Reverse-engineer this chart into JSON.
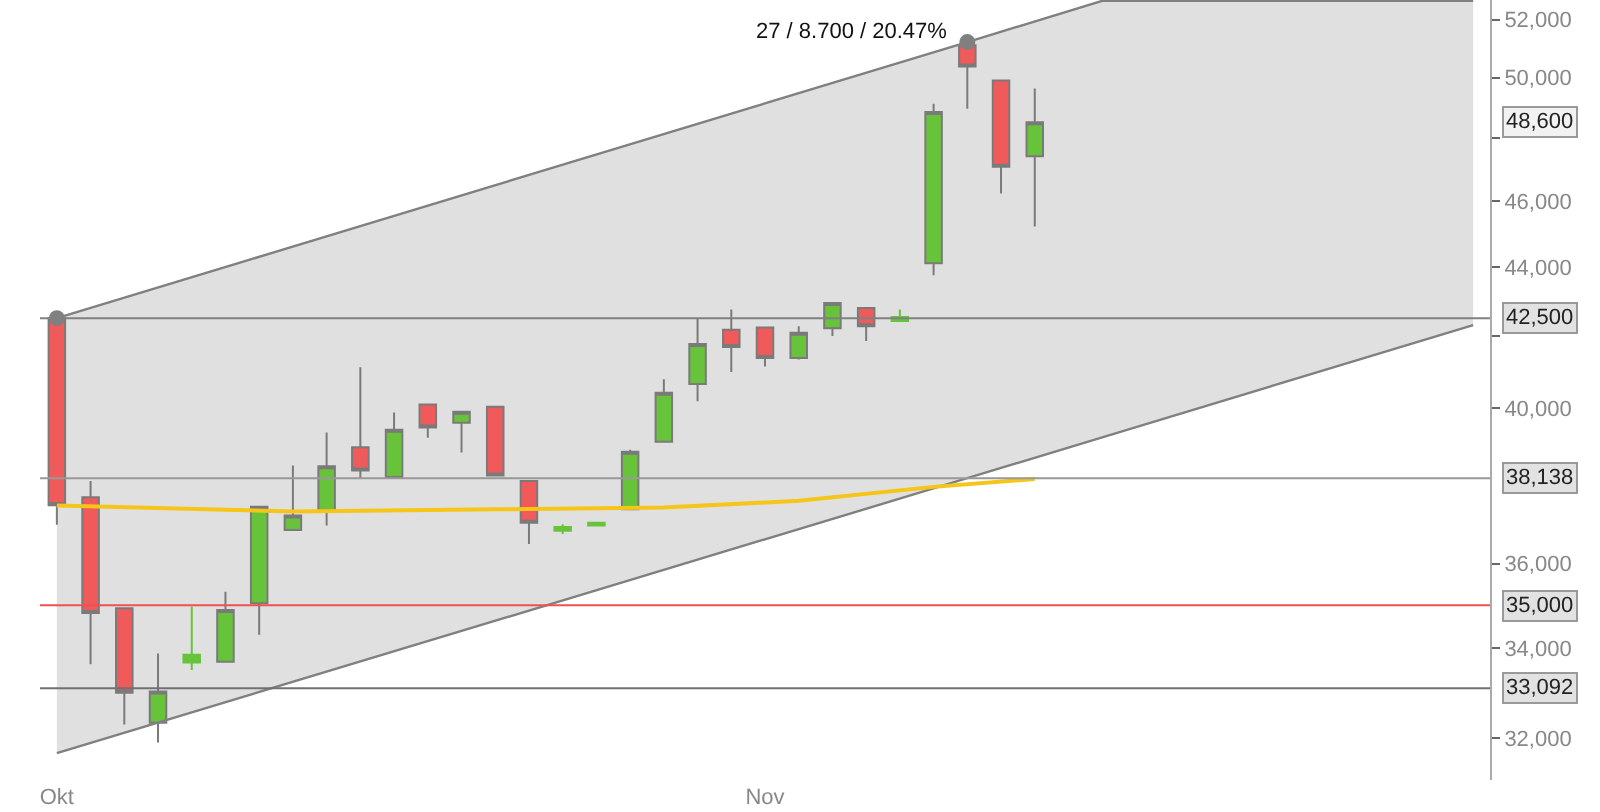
{
  "chart_data": {
    "type": "candlestick",
    "log": "y",
    "categories": [
      "Okt",
      null,
      null,
      null,
      null,
      null,
      null,
      null,
      null,
      null,
      null,
      null,
      null,
      null,
      null,
      null,
      null,
      null,
      null,
      null,
      null,
      "Nov",
      null,
      null,
      null,
      null,
      null,
      null,
      null,
      null,
      null,
      null,
      null,
      null,
      null,
      null,
      null,
      null,
      null,
      null,
      null,
      null,
      null
    ],
    "ohlc": [
      [
        42500,
        42500,
        36960,
        37450
      ],
      [
        37650,
        38070,
        33630,
        34820
      ],
      [
        34930,
        34930,
        32290,
        32990
      ],
      [
        32330,
        33880,
        31900,
        33020
      ],
      [
        33670,
        34970,
        33500,
        33850
      ],
      [
        33690,
        35320,
        33690,
        34890
      ],
      [
        35050,
        37410,
        34310,
        37410
      ],
      [
        36830,
        38470,
        36830,
        37190
      ],
      [
        37330,
        39340,
        36940,
        38450
      ],
      [
        38950,
        41110,
        38120,
        38340
      ],
      [
        38170,
        39870,
        38170,
        39410
      ],
      [
        40090,
        40090,
        39200,
        39470
      ],
      [
        39600,
        39890,
        38810,
        39890
      ],
      [
        40030,
        40030,
        38210,
        38210
      ],
      [
        38070,
        38070,
        36480,
        37010
      ],
      [
        36810,
        36970,
        36730,
        36900
      ],
      [
        36940,
        37010,
        36940,
        37010
      ],
      [
        37350,
        38880,
        37350,
        38830
      ],
      [
        39090,
        40780,
        39090,
        40410
      ],
      [
        40650,
        42500,
        40180,
        41760
      ],
      [
        42170,
        42750,
        40980,
        41680
      ],
      [
        42230,
        42230,
        41130,
        41370
      ],
      [
        41370,
        42270,
        41330,
        42080
      ],
      [
        42210,
        42940,
        41990,
        42940
      ],
      [
        42790,
        42790,
        41850,
        42270
      ],
      [
        42420,
        42750,
        42420,
        42530
      ],
      [
        44110,
        49130,
        43750,
        48860
      ],
      [
        51110,
        51220,
        48960,
        50380
      ],
      [
        49910,
        49910,
        46240,
        47080
      ],
      [
        47420,
        49640,
        45220,
        48520
      ],
      null,
      null,
      null,
      null,
      null,
      null,
      null,
      null,
      null,
      null,
      null,
      null,
      null
    ],
    "colors": [
      "#f05a5a",
      "#f05a5a",
      "#f05a5a",
      "#66c33a",
      "#66c33a",
      "#66c33a",
      "#66c33a",
      "#66c33a",
      "#66c33a",
      "#f05a5a",
      "#66c33a",
      "#f05a5a",
      "#66c33a",
      "#f05a5a",
      "#f05a5a",
      "#66c33a",
      "#66c33a",
      "#66c33a",
      "#66c33a",
      "#66c33a",
      "#f05a5a",
      "#f05a5a",
      "#66c33a",
      "#66c33a",
      "#f05a5a",
      "#66c33a",
      "#66c33a",
      "#f05a5a",
      "#f05a5a",
      "#66c33a",
      null,
      null,
      null,
      null,
      null,
      null,
      null,
      null,
      null,
      null,
      null,
      null,
      null
    ],
    "series": [
      {
        "type": "line",
        "color": "#808080",
        "values": [
          42500,
          null,
          null,
          null,
          null,
          null,
          null,
          null,
          null,
          null,
          null,
          null,
          null,
          null,
          null,
          null,
          null,
          null,
          null,
          null,
          null,
          null,
          null,
          null,
          null,
          null,
          null,
          51220,
          null,
          null,
          null,
          52670,
          null,
          null,
          null,
          null,
          null,
          null,
          null,
          null,
          null,
          null,
          52670
        ],
        "upper": [
          42500,
          null,
          null,
          null,
          null,
          null,
          null,
          null,
          null,
          null,
          null,
          null,
          null,
          null,
          null,
          null,
          null,
          null,
          null,
          null,
          null,
          null,
          null,
          null,
          null,
          null,
          null,
          51220,
          null,
          null,
          null,
          52670,
          null,
          null,
          null,
          null,
          null,
          null,
          null,
          null,
          null,
          null,
          52670
        ],
        "lower": [
          31670,
          null,
          null,
          null,
          null,
          null,
          null,
          null,
          null,
          null,
          null,
          null,
          null,
          null,
          null,
          null,
          null,
          null,
          null,
          null,
          null,
          null,
          null,
          null,
          null,
          null,
          null,
          38140,
          null,
          null,
          null,
          39210,
          null,
          null,
          null,
          null,
          null,
          null,
          null,
          null,
          null,
          null,
          42300
        ]
      },
      {
        "type": "line",
        "color": "#808080",
        "values": [
          31670,
          null,
          null,
          null,
          null,
          null,
          null,
          null,
          null,
          null,
          null,
          null,
          null,
          null,
          null,
          null,
          null,
          null,
          null,
          null,
          null,
          null,
          null,
          null,
          null,
          null,
          null,
          38140,
          null,
          null,
          null,
          39210,
          null,
          null,
          null,
          null,
          null,
          null,
          null,
          null,
          null,
          null,
          42300
        ]
      },
      {
        "type": "scatter",
        "color": "#808080",
        "marker": "circle",
        "values": [
          42500,
          null,
          null,
          null,
          null,
          null,
          null,
          null,
          null,
          null,
          null,
          null,
          null,
          null,
          null,
          null,
          null,
          null,
          null,
          null,
          null,
          null,
          null,
          null,
          null,
          null,
          null,
          51220,
          null,
          null,
          null,
          null,
          null,
          null,
          null,
          null,
          null,
          null,
          null,
          null,
          null,
          null,
          null
        ]
      },
      {
        "type": "line",
        "color": "#f5c518",
        "values": [
          37445,
          null,
          null,
          null,
          null,
          null,
          null,
          37294,
          null,
          null,
          null,
          null,
          null,
          37345,
          null,
          null,
          null,
          null,
          37394,
          null,
          null,
          null,
          37561,
          null,
          null,
          null,
          37917,
          null,
          null,
          38122,
          null,
          null,
          null,
          null,
          null,
          null,
          null,
          null,
          null,
          null,
          null,
          null,
          null
        ]
      }
    ],
    "ylim": [
      31100,
      52700
    ],
    "yticks": [
      {
        "value": 32000,
        "label": "32,000"
      },
      {
        "value": 34000,
        "label": "34,000"
      },
      {
        "value": 36000,
        "label": "36,000"
      },
      {
        "value": 40000,
        "label": "40,000"
      },
      {
        "value": 42000,
        "label": null
      },
      {
        "value": 44000,
        "label": "44,000"
      },
      {
        "value": 46000,
        "label": "46,000"
      },
      {
        "value": 48000,
        "label": null
      },
      {
        "value": 50000,
        "label": "50,000"
      },
      {
        "value": 52000,
        "label": "52,000"
      }
    ],
    "ref_lines": [
      {
        "axis": "y",
        "value": 42500,
        "label": "42,500",
        "color": "#808080"
      },
      {
        "axis": "y",
        "value": 38138,
        "label": "38,138",
        "color": "#999999"
      },
      {
        "axis": "y",
        "value": 35000,
        "label": "35,000",
        "color": "#f05050"
      },
      {
        "axis": "y",
        "value": 33092,
        "label": "33,092",
        "color": "#707070"
      }
    ],
    "annotations": [
      "27 / 8.700 / 20.47%",
      "48,600"
    ]
  }
}
